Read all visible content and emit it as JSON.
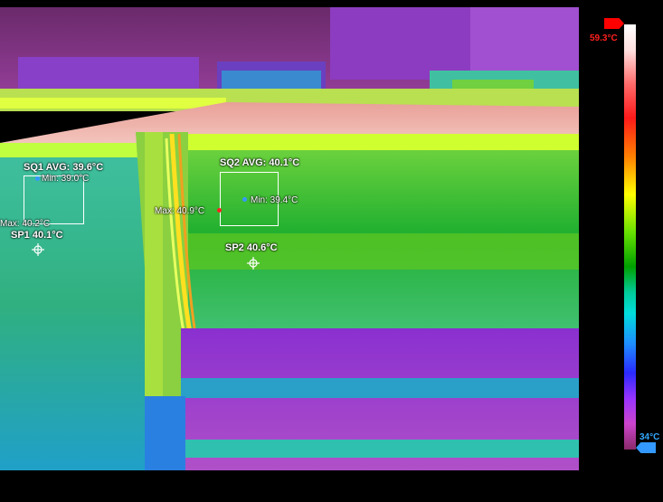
{
  "measurements": {
    "sq1": {
      "avg_label": "SQ1 AVG: 39.6°C",
      "min_label": "Min: 39.0°C",
      "max_label": "Max: 40.2°C"
    },
    "sq2": {
      "avg_label": "SQ2 AVG: 40.1°C",
      "min_label": "Min: 39.4°C",
      "max_label": "Max: 40.9°C"
    },
    "sp1": {
      "label": "SP1 40.1°C"
    },
    "sp2": {
      "label": "SP2 40.6°C"
    }
  },
  "color_scale": {
    "max_label": "59.3°C",
    "min_label": "34°C",
    "max_marker_color": "#ff0000",
    "min_marker_color": "#3399ff"
  }
}
